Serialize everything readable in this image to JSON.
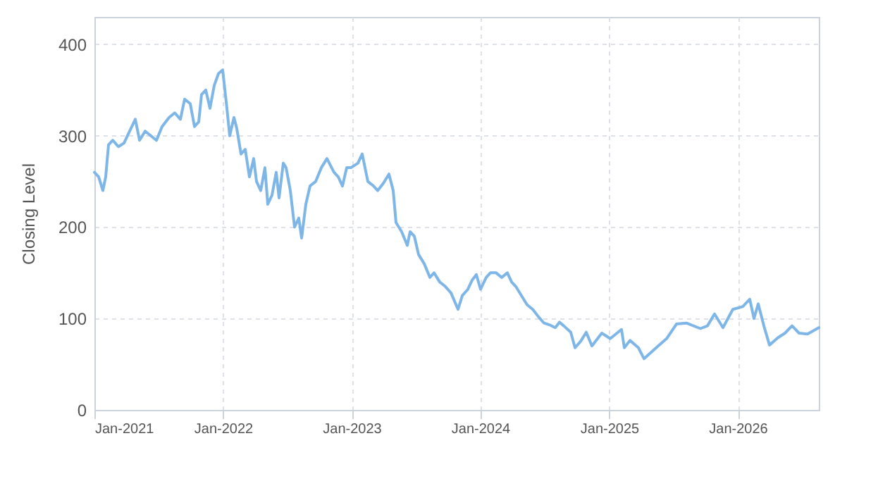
{
  "chart_data": {
    "type": "line",
    "ylabel": "Closing Level",
    "xlim": [
      "2021-01-01",
      "2026-08-19"
    ],
    "xticks": [
      {
        "value": "2021-01-01",
        "label": "Jan-2021"
      },
      {
        "value": "2022-01-01",
        "label": "Jan-2022"
      },
      {
        "value": "2023-01-01",
        "label": "Jan-2023"
      },
      {
        "value": "2024-01-01",
        "label": "Jan-2024"
      },
      {
        "value": "2025-01-01",
        "label": "Jan-2025"
      },
      {
        "value": "2026-01-01",
        "label": "Jan-2026"
      }
    ],
    "ylim": [
      0,
      430
    ],
    "yticks": [
      0,
      100,
      200,
      300,
      400
    ],
    "grid": true,
    "line_style": "solid",
    "x": [
      "2021-01-01",
      "2021-01-13",
      "2021-01-25",
      "2021-02-02",
      "2021-02-10",
      "2021-02-22",
      "2021-03-10",
      "2021-03-26",
      "2021-04-11",
      "2021-04-27",
      "2021-05-09",
      "2021-05-25",
      "2021-06-10",
      "2021-06-26",
      "2021-07-12",
      "2021-08-01",
      "2021-08-17",
      "2021-09-02",
      "2021-09-14",
      "2021-09-30",
      "2021-10-12",
      "2021-10-24",
      "2021-11-01",
      "2021-11-13",
      "2021-11-25",
      "2021-12-07",
      "2021-12-19",
      "2021-12-31",
      "2022-01-12",
      "2022-01-20",
      "2022-02-01",
      "2022-02-09",
      "2022-02-21",
      "2022-03-05",
      "2022-03-17",
      "2022-03-29",
      "2022-04-06",
      "2022-04-18",
      "2022-04-30",
      "2022-05-08",
      "2022-05-20",
      "2022-06-01",
      "2022-06-09",
      "2022-06-21",
      "2022-06-29",
      "2022-07-11",
      "2022-07-23",
      "2022-08-04",
      "2022-08-12",
      "2022-08-24",
      "2022-09-05",
      "2022-09-21",
      "2022-10-07",
      "2022-10-23",
      "2022-11-12",
      "2022-11-24",
      "2022-12-06",
      "2022-12-18",
      "2022-12-30",
      "2023-01-19",
      "2023-01-31",
      "2023-02-16",
      "2023-03-04",
      "2023-03-16",
      "2023-04-01",
      "2023-04-17",
      "2023-04-29",
      "2023-05-07",
      "2023-05-23",
      "2023-06-08",
      "2023-06-16",
      "2023-06-28",
      "2023-07-10",
      "2023-07-26",
      "2023-08-11",
      "2023-08-23",
      "2023-09-08",
      "2023-09-24",
      "2023-10-10",
      "2023-10-30",
      "2023-11-11",
      "2023-11-27",
      "2023-12-09",
      "2023-12-21",
      "2024-01-02",
      "2024-01-18",
      "2024-01-30",
      "2024-02-15",
      "2024-03-02",
      "2024-03-18",
      "2024-03-30",
      "2024-04-11",
      "2024-04-27",
      "2024-05-13",
      "2024-05-29",
      "2024-06-14",
      "2024-06-30",
      "2024-07-16",
      "2024-08-01",
      "2024-08-13",
      "2024-08-25",
      "2024-09-14",
      "2024-09-26",
      "2024-10-12",
      "2024-10-28",
      "2024-11-13",
      "2024-12-11",
      "2025-01-04",
      "2025-02-05",
      "2025-02-13",
      "2025-03-01",
      "2025-03-25",
      "2025-04-10",
      "2025-05-20",
      "2025-06-13",
      "2025-07-11",
      "2025-08-08",
      "2025-09-17",
      "2025-10-07",
      "2025-10-27",
      "2025-11-20",
      "2025-12-18",
      "2026-01-15",
      "2026-02-04",
      "2026-02-16",
      "2026-02-28",
      "2026-03-16",
      "2026-04-01",
      "2026-04-25",
      "2026-05-15",
      "2026-06-04",
      "2026-06-24",
      "2026-07-18",
      "2026-08-19"
    ],
    "series": [
      {
        "color": "#7eb6e8",
        "values": [
          260,
          255,
          240,
          255,
          290,
          295,
          288,
          292,
          305,
          318,
          295,
          305,
          300,
          295,
          310,
          320,
          325,
          318,
          340,
          335,
          310,
          315,
          345,
          350,
          330,
          355,
          368,
          372,
          330,
          300,
          320,
          308,
          280,
          285,
          255,
          275,
          250,
          240,
          265,
          225,
          235,
          260,
          232,
          270,
          265,
          240,
          200,
          210,
          188,
          225,
          245,
          250,
          265,
          275,
          260,
          255,
          245,
          265,
          265,
          270,
          280,
          250,
          245,
          240,
          248,
          258,
          240,
          205,
          195,
          180,
          195,
          190,
          170,
          160,
          145,
          150,
          140,
          135,
          128,
          110,
          125,
          132,
          142,
          148,
          132,
          145,
          150,
          150,
          145,
          150,
          140,
          135,
          125,
          115,
          110,
          102,
          95,
          93,
          90,
          96,
          92,
          85,
          68,
          75,
          85,
          70,
          84,
          78,
          88,
          68,
          76,
          68,
          56,
          70,
          78,
          94,
          95,
          89,
          92,
          105,
          90,
          110,
          113,
          121,
          100,
          116,
          92,
          71,
          79,
          84,
          92,
          84,
          83,
          90
        ]
      }
    ]
  }
}
